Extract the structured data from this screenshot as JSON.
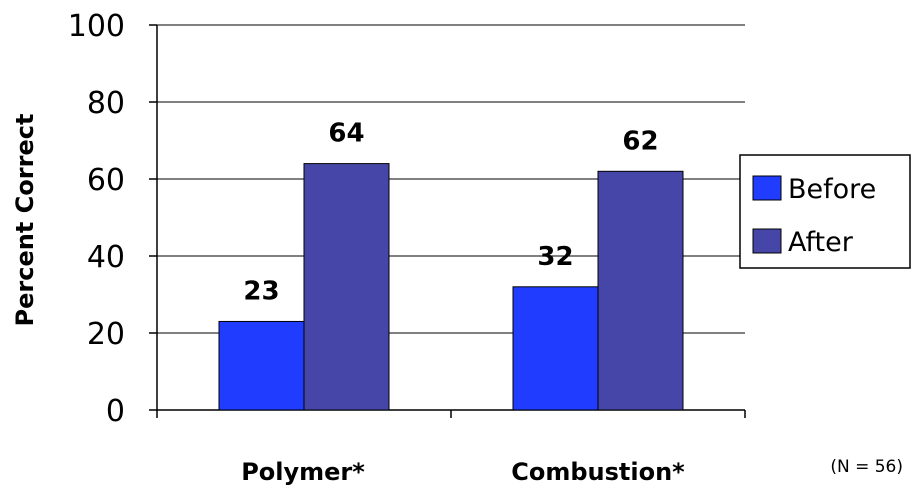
{
  "chart_data": {
    "type": "bar",
    "ylabel": "Percent Correct",
    "xlabel": "",
    "categories": [
      "Polymer*",
      "Combustion*"
    ],
    "series": [
      {
        "name": "Before",
        "values": [
          23,
          32
        ],
        "color": "#1f3cff"
      },
      {
        "name": "After",
        "values": [
          64,
          62
        ],
        "color": "#4646a8"
      }
    ],
    "ylim": [
      0,
      100
    ],
    "yticks": [
      "0",
      "20",
      "40",
      "60",
      "80",
      "100"
    ],
    "data_labels": [
      [
        "23",
        "32"
      ],
      [
        "64",
        "62"
      ]
    ],
    "grid": true,
    "legend_position": "right",
    "note": "(N = 56)"
  }
}
